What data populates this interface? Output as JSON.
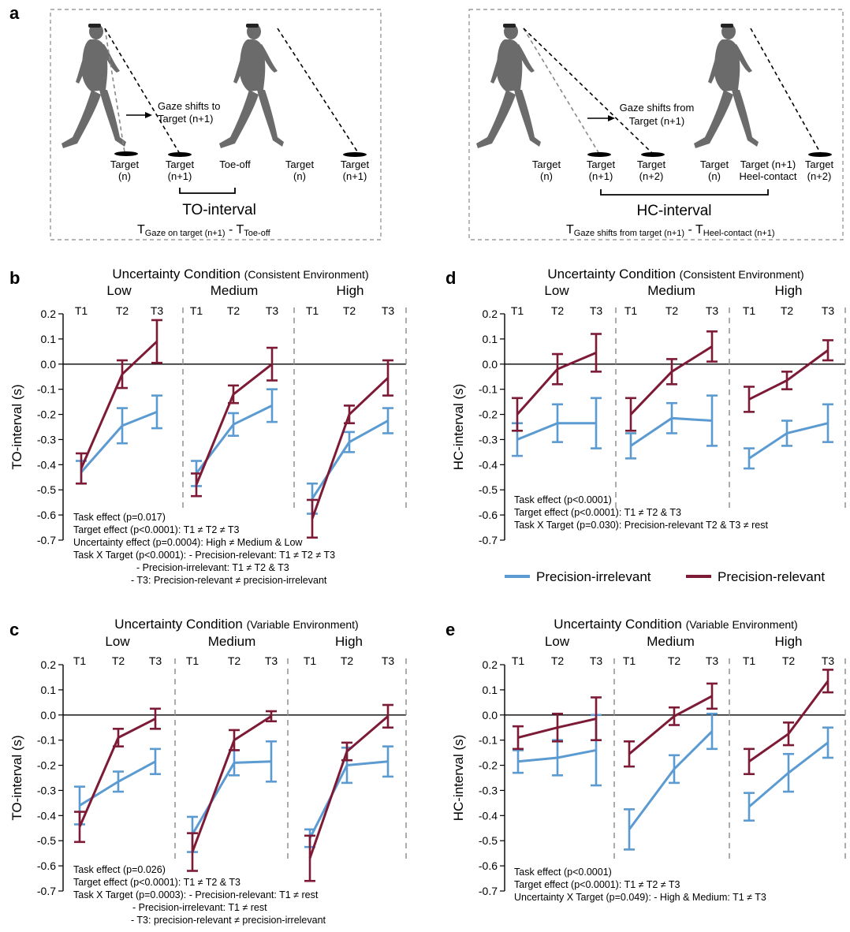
{
  "colors": {
    "irrelevant": "#5b9bd1",
    "relevant": "#7d1a36",
    "walker": "#6b6b6b",
    "dash": "#888888"
  },
  "panel_a": {
    "letter": "a",
    "left": {
      "gaze_text": [
        "Gaze shifts to",
        "Target (n+1)"
      ],
      "labels": [
        [
          "Target",
          "(n)"
        ],
        [
          "Target",
          "(n+1)"
        ],
        [
          "Toe-off"
        ],
        [
          "Target",
          "(n)"
        ],
        [
          "Target",
          "(n+1)"
        ]
      ],
      "interval_name": "TO-interval",
      "formula_main_1": "T",
      "formula_sub_1": "Gaze on target (n+1)",
      "formula_minus": " - T",
      "formula_sub_2": "Toe-off"
    },
    "right": {
      "gaze_text": [
        "Gaze shifts from",
        "Target (n+1)"
      ],
      "labels": [
        [
          "Target",
          "(n)"
        ],
        [
          "Target",
          "(n+1)"
        ],
        [
          "Target",
          "(n+2)"
        ],
        [
          "Target",
          "(n)"
        ],
        [
          "Target (n+1)",
          "Heel-contact"
        ],
        [
          "Target",
          "(n+2)"
        ]
      ],
      "interval_name": "HC-interval",
      "formula_main_1": "T",
      "formula_sub_1": "Gaze shifts from target (n+1)",
      "formula_minus": " - T",
      "formula_sub_2": "Heel-contact (n+1)"
    }
  },
  "legend": {
    "irrelevant": "Precision-irrelevant",
    "relevant": "Precision-relevant"
  },
  "chart_data": [
    {
      "id": "b",
      "letter": "b",
      "type": "line",
      "title_main": "Uncertainty Condition ",
      "title_paren": "(Consistent Environment)",
      "groups": [
        "Low",
        "Medium",
        "High"
      ],
      "categories": [
        "T1",
        "T2",
        "T3"
      ],
      "ylabel": "TO-interval (s)",
      "ylim": [
        -0.7,
        0.2
      ],
      "yticks": [
        "0.2",
        "0.1",
        "0.0",
        "-0.1",
        "-0.2",
        "-0.3",
        "-0.4",
        "-0.5",
        "-0.6",
        "-0.7"
      ],
      "series": [
        {
          "name": "Precision-irrelevant",
          "values": [
            [
              -0.43,
              -0.245,
              -0.19
            ],
            [
              -0.435,
              -0.24,
              -0.165
            ],
            [
              -0.535,
              -0.31,
              -0.225
            ]
          ],
          "errors": [
            [
              0.045,
              0.07,
              0.065
            ],
            [
              0.05,
              0.045,
              0.065
            ],
            [
              0.06,
              0.04,
              0.05
            ]
          ]
        },
        {
          "name": "Precision-relevant",
          "values": [
            [
              -0.415,
              -0.04,
              0.09
            ],
            [
              -0.48,
              -0.12,
              0.0
            ],
            [
              -0.615,
              -0.2,
              -0.055
            ]
          ],
          "errors": [
            [
              0.06,
              0.055,
              0.085
            ],
            [
              0.045,
              0.035,
              0.065
            ],
            [
              0.075,
              0.035,
              0.07
            ]
          ]
        }
      ],
      "notes": [
        "Task effect (p=0.017)",
        "Target effect (p<0.0001): T1 ≠ T2 ≠ T3",
        "Uncertainty effect (p=0.0004): High ≠ Medium & Low",
        "Task X Target (p<0.0001): - Precision-relevant: T1 ≠ T2 ≠ T3",
        "- Precision-irrelevant: T1 ≠ T2 & T3",
        "- T3: Precision-relevant ≠ precision-irrelevant"
      ]
    },
    {
      "id": "c",
      "letter": "c",
      "type": "line",
      "title_main": "Uncertainty Condition ",
      "title_paren": "(Variable Environment)",
      "groups": [
        "Low",
        "Medium",
        "High"
      ],
      "categories": [
        "T1",
        "T2",
        "T3"
      ],
      "ylabel": "TO-interval (s)",
      "ylim": [
        -0.7,
        0.2
      ],
      "yticks": [
        "0.2",
        "0.1",
        "0.0",
        "-0.1",
        "-0.2",
        "-0.3",
        "-0.4",
        "-0.5",
        "-0.6",
        "-0.7"
      ],
      "series": [
        {
          "name": "Precision-irrelevant",
          "values": [
            [
              -0.36,
              -0.265,
              -0.185
            ],
            [
              -0.475,
              -0.19,
              -0.185
            ],
            [
              -0.49,
              -0.2,
              -0.185
            ]
          ],
          "errors": [
            [
              0.075,
              0.04,
              0.05
            ],
            [
              0.07,
              0.05,
              0.08
            ],
            [
              0.035,
              0.07,
              0.06
            ]
          ]
        },
        {
          "name": "Precision-relevant",
          "values": [
            [
              -0.445,
              -0.09,
              -0.015
            ],
            [
              -0.545,
              -0.1,
              -0.005
            ],
            [
              -0.57,
              -0.145,
              -0.005
            ]
          ],
          "errors": [
            [
              0.06,
              0.035,
              0.04
            ],
            [
              0.075,
              0.04,
              0.02
            ],
            [
              0.09,
              0.035,
              0.045
            ]
          ]
        }
      ],
      "notes": [
        "Task effect (p=0.026)",
        "Target effect (p<0.0001): T1 ≠ T2 & T3",
        "Task X Target (p=0.0003): - Precision-relevant: T1 ≠ rest",
        "- Precision-irrelevant: T1 ≠ rest",
        "- T3: precision-relevant ≠ precision-irrelevant"
      ]
    },
    {
      "id": "d",
      "letter": "d",
      "type": "line",
      "title_main": "Uncertainty Condition ",
      "title_paren": "(Consistent Environment)",
      "groups": [
        "Low",
        "Medium",
        "High"
      ],
      "categories": [
        "T1",
        "T2",
        "T3"
      ],
      "ylabel": "HC-interval (s)",
      "ylim": [
        -0.7,
        0.2
      ],
      "yticks": [
        "0.2",
        "0.1",
        "0.0",
        "-0.1",
        "-0.2",
        "-0.3",
        "-0.4",
        "-0.5",
        "-0.6",
        "-0.7"
      ],
      "series": [
        {
          "name": "Precision-irrelevant",
          "values": [
            [
              -0.3,
              -0.235,
              -0.235
            ],
            [
              -0.325,
              -0.215,
              -0.225
            ],
            [
              -0.375,
              -0.275,
              -0.235
            ]
          ],
          "errors": [
            [
              0.065,
              0.075,
              0.1
            ],
            [
              0.05,
              0.06,
              0.1
            ],
            [
              0.04,
              0.05,
              0.075
            ]
          ]
        },
        {
          "name": "Precision-relevant",
          "values": [
            [
              -0.2,
              -0.02,
              0.045
            ],
            [
              -0.2,
              -0.03,
              0.07
            ],
            [
              -0.14,
              -0.065,
              0.055
            ]
          ],
          "errors": [
            [
              0.065,
              0.06,
              0.075
            ],
            [
              0.065,
              0.05,
              0.06
            ],
            [
              0.05,
              0.035,
              0.04
            ]
          ]
        }
      ],
      "notes": [
        "Task effect (p<0.0001)",
        "Target effect (p<0.0001): T1 ≠ T2 & T3",
        "Task X Target (p=0.030): Precision-relevant T2 & T3 ≠ rest"
      ]
    },
    {
      "id": "e",
      "letter": "e",
      "type": "line",
      "title_main": "Uncertainty Condition ",
      "title_paren": "(Variable Environment)",
      "groups": [
        "Low",
        "Medium",
        "High"
      ],
      "categories": [
        "T1",
        "T2",
        "T3"
      ],
      "ylabel": "HC-interval (s)",
      "ylim": [
        -0.7,
        0.2
      ],
      "yticks": [
        "0.2",
        "0.1",
        "0.0",
        "-0.1",
        "-0.2",
        "-0.3",
        "-0.4",
        "-0.5",
        "-0.6",
        "-0.7"
      ],
      "series": [
        {
          "name": "Precision-irrelevant",
          "values": [
            [
              -0.185,
              -0.17,
              -0.14
            ],
            [
              -0.455,
              -0.215,
              -0.065
            ],
            [
              -0.365,
              -0.23,
              -0.11
            ]
          ],
          "errors": [
            [
              0.045,
              0.07,
              0.14
            ],
            [
              0.08,
              0.055,
              0.07
            ],
            [
              0.055,
              0.075,
              0.06
            ]
          ]
        },
        {
          "name": "Precision-relevant",
          "values": [
            [
              -0.09,
              -0.05,
              -0.015
            ],
            [
              -0.155,
              -0.005,
              0.075
            ],
            [
              -0.185,
              -0.075,
              0.135
            ]
          ],
          "errors": [
            [
              0.045,
              0.055,
              0.085
            ],
            [
              0.05,
              0.035,
              0.05
            ],
            [
              0.05,
              0.045,
              0.045
            ]
          ]
        }
      ],
      "notes": [
        "Task effect (p<0.0001)",
        "Target effect (p<0.0001): T1 ≠ T2 ≠ T3",
        "Uncertainty X Target (p=0.049): - High & Medium: T1 ≠ T3"
      ]
    }
  ]
}
